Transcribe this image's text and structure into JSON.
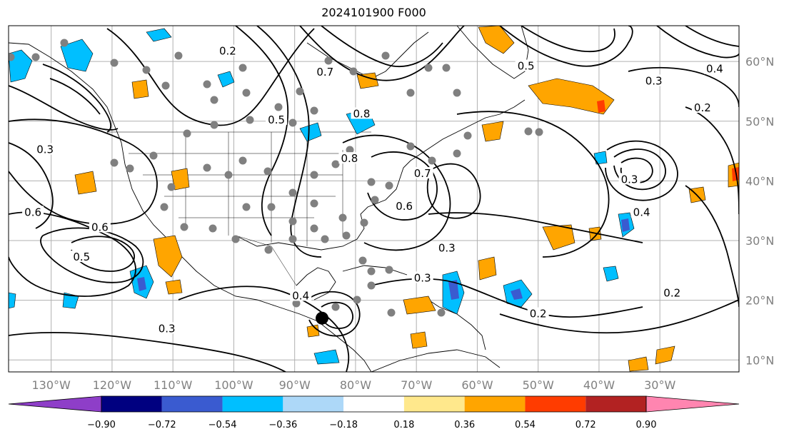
{
  "title": "2024101900 F000",
  "map": {
    "lon_range": [
      -137,
      -17
    ],
    "lat_range": [
      8,
      66
    ],
    "lon_ticks": [
      {
        "value": -130,
        "label": "130°W"
      },
      {
        "value": -120,
        "label": "120°W"
      },
      {
        "value": -110,
        "label": "110°W"
      },
      {
        "value": -100,
        "label": "100°W"
      },
      {
        "value": -90,
        "label": "90°W"
      },
      {
        "value": -80,
        "label": "80°W"
      },
      {
        "value": -70,
        "label": "70°W"
      },
      {
        "value": -60,
        "label": "60°W"
      },
      {
        "value": -50,
        "label": "50°W"
      },
      {
        "value": -40,
        "label": "40°W"
      },
      {
        "value": -30,
        "label": "30°W"
      }
    ],
    "lat_ticks": [
      {
        "value": 60,
        "label": "60°N"
      },
      {
        "value": 50,
        "label": "50°N"
      },
      {
        "value": 40,
        "label": "40°N"
      },
      {
        "value": 30,
        "label": "30°N"
      },
      {
        "value": 20,
        "label": "20°N"
      },
      {
        "value": 10,
        "label": "10°N"
      }
    ],
    "contour_labels": [
      {
        "lon": -101,
        "lat": 61.5,
        "text": "0.2"
      },
      {
        "lon": -85,
        "lat": 58.0,
        "text": "0.7"
      },
      {
        "lon": -79,
        "lat": 51.0,
        "text": "0.8"
      },
      {
        "lon": -81,
        "lat": 43.5,
        "text": "0.8"
      },
      {
        "lon": -69,
        "lat": 41.0,
        "text": "0.7"
      },
      {
        "lon": -72,
        "lat": 35.5,
        "text": "0.6"
      },
      {
        "lon": -65,
        "lat": 28.5,
        "text": "0.3"
      },
      {
        "lon": -69,
        "lat": 23.5,
        "text": "0.3"
      },
      {
        "lon": -50,
        "lat": 17.5,
        "text": "0.2"
      },
      {
        "lon": -33,
        "lat": 34.5,
        "text": "0.4"
      },
      {
        "lon": -23,
        "lat": 52.0,
        "text": "0.2"
      },
      {
        "lon": -31,
        "lat": 56.5,
        "text": "0.3"
      },
      {
        "lon": -21,
        "lat": 58.5,
        "text": "0.4"
      },
      {
        "lon": -133,
        "lat": 34.5,
        "text": "0.6"
      },
      {
        "lon": -122,
        "lat": 32.0,
        "text": "0.6"
      },
      {
        "lon": -131,
        "lat": 45.0,
        "text": "0.3"
      },
      {
        "lon": -125,
        "lat": 27.0,
        "text": "0.5"
      },
      {
        "lon": -111,
        "lat": 15.0,
        "text": "0.3"
      },
      {
        "lon": -89,
        "lat": 20.5,
        "text": "0.4"
      },
      {
        "lon": -93,
        "lat": 50.0,
        "text": "0.5"
      },
      {
        "lon": -52,
        "lat": 59.0,
        "text": "0.5"
      },
      {
        "lon": -28,
        "lat": 21.0,
        "text": "0.2"
      },
      {
        "lon": -35,
        "lat": 40.0,
        "text": "0.3"
      }
    ],
    "tropical_cyclone": {
      "lon": -85.5,
      "lat": 17.0
    }
  },
  "colorbar": {
    "colors": [
      "#8e3ec8",
      "#000080",
      "#3a5bd0",
      "#00bfff",
      "#add8f8",
      "#ffffff",
      "#ffe88c",
      "#ffa500",
      "#ff3c00",
      "#b22222",
      "#ff85b0"
    ],
    "ticks": [
      "−0.90",
      "−0.72",
      "−0.54",
      "−0.36",
      "−0.18",
      "0.18",
      "0.36",
      "0.54",
      "0.72",
      "0.90"
    ]
  },
  "colors": {
    "negative_fill": "#00bfff",
    "negative_strong": "#3a5bd0",
    "positive_fill": "#ffa500",
    "positive_strong": "#ff3c00",
    "station_marker": "#808080",
    "grid": "#b0b0b0"
  }
}
